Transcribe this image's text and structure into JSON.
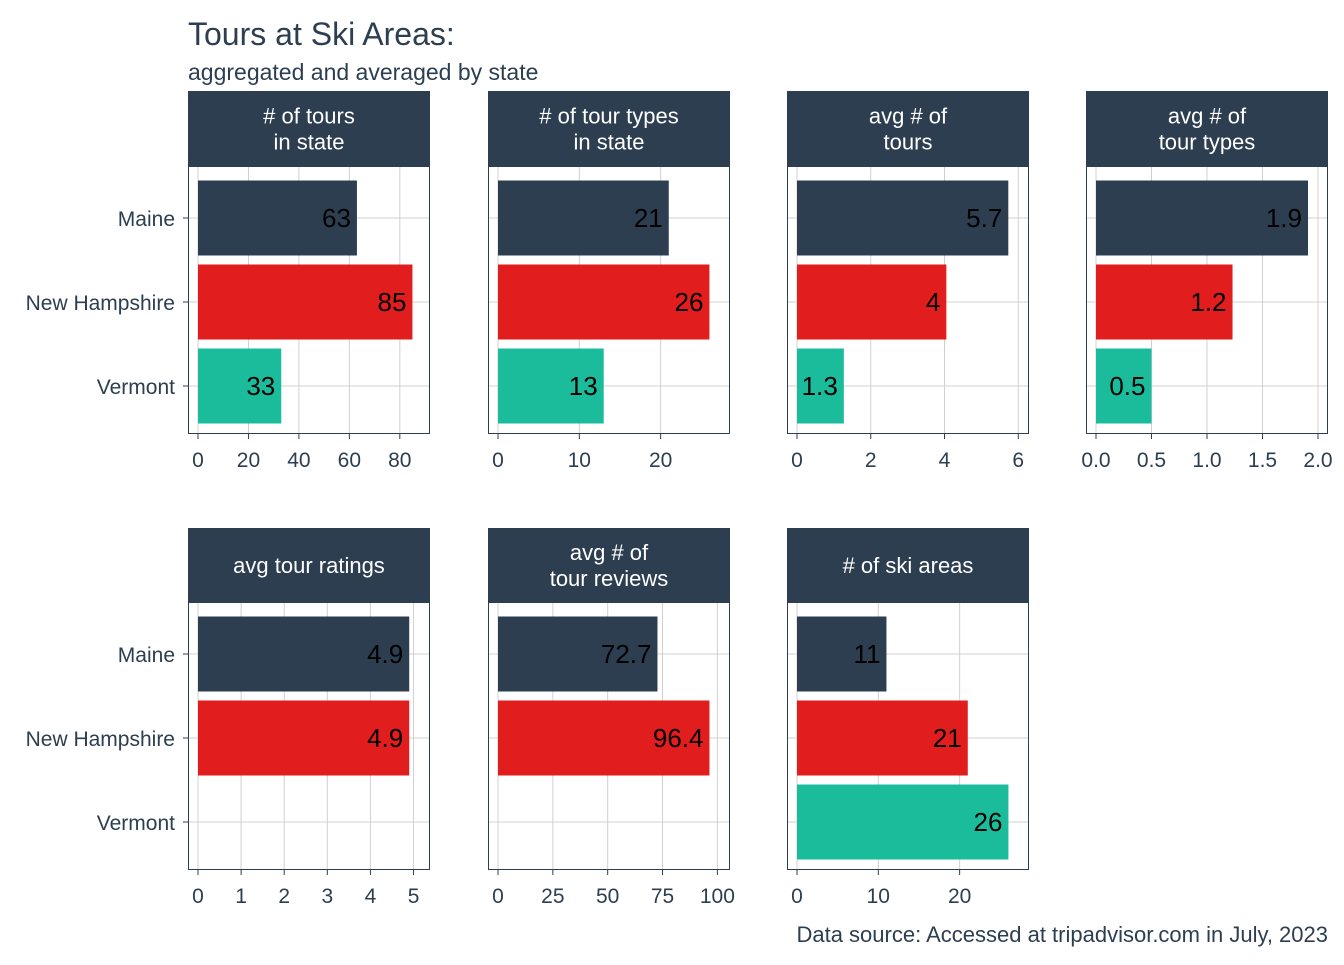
{
  "title": "Tours at Ski Areas:",
  "subtitle": "aggregated and averaged by state",
  "caption": "Data source: Accessed at tripadvisor.com in July, 2023",
  "colors": {
    "text": "#2c3e50",
    "strip": "#2c3e50",
    "strip_text": "#ffffff",
    "grid": "#d0d0d0",
    "panel_border": "#2c3e50",
    "value_label": "#000000"
  },
  "chart_data": {
    "type": "bar",
    "orientation": "horizontal",
    "categories": [
      "Maine",
      "New Hampshire",
      "Vermont"
    ],
    "category_colors": {
      "Maine": "#2c3e50",
      "New Hampshire": "#e11d1d",
      "Vermont": "#1abc9c"
    },
    "grid": true,
    "facets": [
      {
        "strip": [
          "# of tours",
          "in state"
        ],
        "values": [
          63,
          85,
          33
        ],
        "labels": [
          "63",
          "85",
          "33"
        ],
        "xlim": [
          0,
          88
        ],
        "ticks": [
          0,
          20,
          40,
          60,
          80
        ],
        "tick_labels": [
          "0",
          "20",
          "40",
          "60",
          "80"
        ]
      },
      {
        "strip": [
          "# of tour types",
          "in state"
        ],
        "values": [
          21,
          26,
          13
        ],
        "labels": [
          "21",
          "26",
          "13"
        ],
        "xlim": [
          0,
          27.3
        ],
        "ticks": [
          0,
          10,
          20
        ],
        "tick_labels": [
          "0",
          "10",
          "20"
        ]
      },
      {
        "strip": [
          "avg # of",
          "tours"
        ],
        "values": [
          5.73,
          4.05,
          1.27
        ],
        "labels": [
          "5.7",
          "4",
          "1.3"
        ],
        "xlim": [
          0,
          6.02
        ],
        "ticks": [
          0,
          2,
          4,
          6
        ],
        "tick_labels": [
          "0",
          "2",
          "4",
          "6"
        ]
      },
      {
        "strip": [
          "avg # of",
          "tour types"
        ],
        "values": [
          1.91,
          1.23,
          0.5
        ],
        "labels": [
          "1.9",
          "1.2",
          "0.5"
        ],
        "xlim": [
          0,
          2.0
        ],
        "ticks": [
          0,
          0.5,
          1.0,
          1.5,
          2.0
        ],
        "tick_labels": [
          "0.0",
          "0.5",
          "1.0",
          "1.5",
          "2.0"
        ]
      },
      {
        "strip": [
          "avg tour ratings"
        ],
        "values": [
          4.9,
          4.9,
          null
        ],
        "labels": [
          "4.9",
          "4.9",
          ""
        ],
        "xlim": [
          0,
          5.15
        ],
        "ticks": [
          0,
          1,
          2,
          3,
          4,
          5
        ],
        "tick_labels": [
          "0",
          "1",
          "2",
          "3",
          "4",
          "5"
        ]
      },
      {
        "strip": [
          "avg # of",
          "tour reviews"
        ],
        "values": [
          72.7,
          96.4,
          null
        ],
        "labels": [
          "72.7",
          "96.4",
          ""
        ],
        "xlim": [
          0,
          101.2
        ],
        "ticks": [
          0,
          25,
          50,
          75,
          100
        ],
        "tick_labels": [
          "0",
          "25",
          "50",
          "75",
          "100"
        ]
      },
      {
        "strip": [
          "# of ski areas"
        ],
        "values": [
          11,
          21,
          26
        ],
        "labels": [
          "11",
          "21",
          "26"
        ],
        "xlim": [
          0,
          27.3
        ],
        "ticks": [
          0,
          10,
          20
        ],
        "tick_labels": [
          "0",
          "10",
          "20"
        ]
      }
    ]
  }
}
